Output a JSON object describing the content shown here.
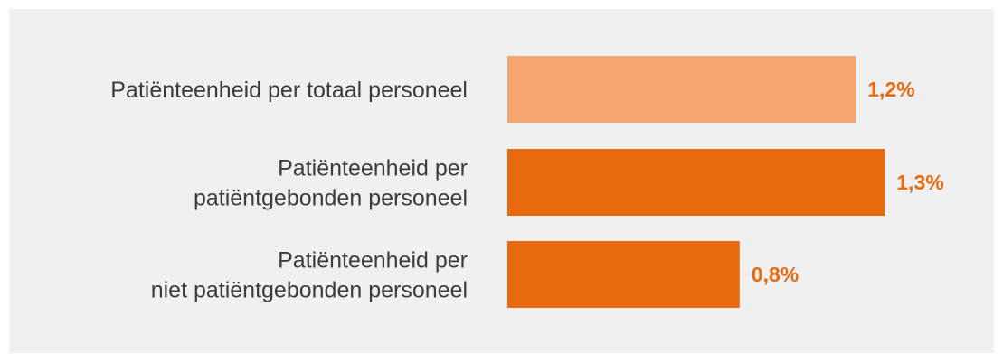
{
  "chart_data": {
    "type": "bar",
    "orientation": "horizontal",
    "categories": [
      [
        "Patiënteenheid per totaal personeel"
      ],
      [
        "Patiënteenheid per",
        "patiëntgebonden personeel"
      ],
      [
        "Patiënteenheid per",
        "niet patiëntgebonden personeel"
      ]
    ],
    "values": [
      1.2,
      1.3,
      0.8
    ],
    "value_labels": [
      "1,2%",
      "1,3%",
      "0,8%"
    ],
    "colors": [
      "#f5a56f",
      "#e8690e",
      "#e8690e"
    ],
    "label_color": "#e8690e",
    "unit": "%",
    "grid": false,
    "legend": "none"
  }
}
